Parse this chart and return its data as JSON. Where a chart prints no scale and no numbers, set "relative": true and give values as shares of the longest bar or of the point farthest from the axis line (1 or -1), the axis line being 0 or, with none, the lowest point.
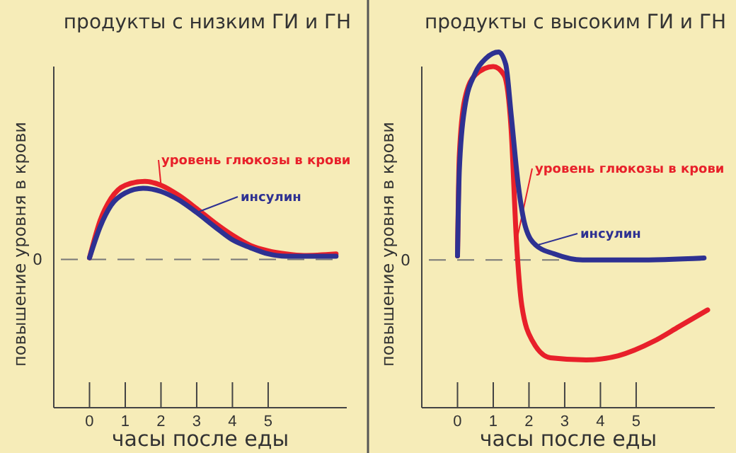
{
  "chart_data": [
    {
      "type": "line",
      "title": "продукты с низким ГИ и ГН",
      "xlabel": "часы после еды",
      "ylabel": "повышение уровня в крови",
      "relative": true,
      "xlim": [
        -1,
        7.2
      ],
      "xticks": [
        0,
        1,
        2,
        3,
        4,
        5
      ],
      "grid": false,
      "legend": "top right",
      "marker": "none",
      "line_style": "solid",
      "ref_lines": [
        {
          "axis": "y",
          "value": 0,
          "label": "0",
          "line_style": "dashed"
        }
      ],
      "series": [
        {
          "name": "уровень глюкозы в крови",
          "color": "#e8202a",
          "x": [
            0,
            0.3,
            0.6,
            1,
            1.55,
            2,
            2.5,
            3,
            3.5,
            4,
            4.5,
            5,
            5.5,
            6,
            6.9
          ],
          "values": [
            0.02,
            0.5,
            0.78,
            0.95,
            1,
            0.95,
            0.82,
            0.65,
            0.47,
            0.31,
            0.18,
            0.11,
            0.07,
            0.05,
            0.07
          ]
        },
        {
          "name": "инсулин",
          "color": "#2e3192",
          "x": [
            0,
            0.3,
            0.6,
            1,
            1.5,
            2,
            2.5,
            3,
            3.5,
            4,
            4.5,
            5,
            5.5,
            6,
            6.9
          ],
          "values": [
            0.02,
            0.42,
            0.69,
            0.85,
            0.91,
            0.87,
            0.76,
            0.6,
            0.42,
            0.25,
            0.15,
            0.07,
            0.04,
            0.04,
            0.04
          ]
        }
      ]
    },
    {
      "type": "line",
      "title": "продукты с высоким ГИ и ГН",
      "xlabel": "часы после еды",
      "ylabel": "повышение уровня в крови",
      "relative": true,
      "xlim": [
        -1,
        7.2
      ],
      "xticks": [
        0,
        1,
        2,
        3,
        4,
        5
      ],
      "grid": false,
      "legend": "right",
      "marker": "none",
      "line_style": "solid",
      "ref_lines": [
        {
          "axis": "y",
          "value": 0,
          "label": "0",
          "line_style": "dashed"
        }
      ],
      "series": [
        {
          "name": "уровень глюкозы в крови",
          "color": "#e8202a",
          "x": [
            0,
            0.05,
            0.2,
            0.5,
            1,
            1.3,
            1.5,
            1.65,
            1.8,
            2.1,
            2.6,
            3.6,
            4.5,
            5.5,
            6.2,
            7
          ],
          "values": [
            0.02,
            0.5,
            0.77,
            0.89,
            0.93,
            0.89,
            0.63,
            0.09,
            -0.22,
            -0.39,
            -0.47,
            -0.48,
            -0.46,
            -0.39,
            -0.32,
            -0.24
          ]
        },
        {
          "name": "инсулин",
          "color": "#2e3192",
          "x": [
            0,
            0.05,
            0.2,
            0.5,
            0.8,
            1.15,
            1.35,
            1.5,
            1.7,
            1.9,
            2.2,
            2.7,
            3.5,
            5,
            6.9
          ],
          "values": [
            0.02,
            0.43,
            0.73,
            0.9,
            0.97,
            1,
            0.94,
            0.7,
            0.36,
            0.16,
            0.07,
            0.03,
            0,
            0,
            0.01
          ]
        }
      ]
    }
  ]
}
